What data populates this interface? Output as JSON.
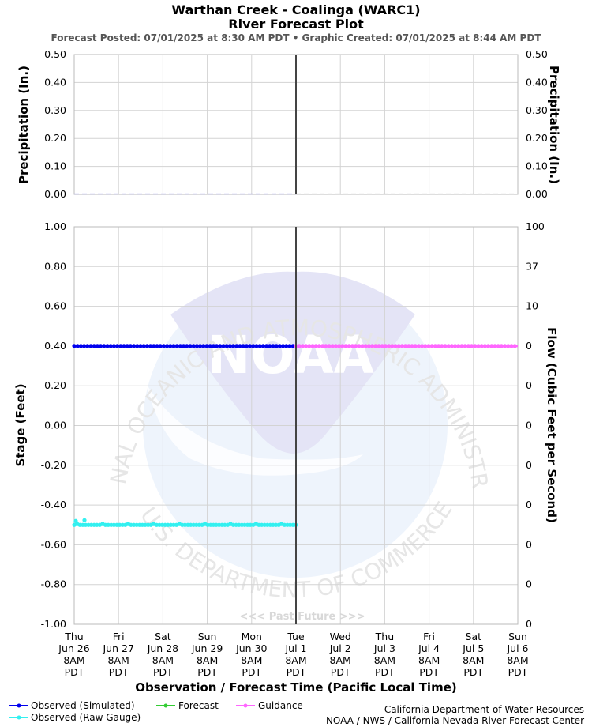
{
  "header": {
    "title": "Warthan Creek - Coalinga (WARC1)",
    "subtitle": "River Forecast Plot",
    "posted": "Forecast Posted: 07/01/2025 at 8:30 AM PDT  •  Graphic Created: 07/01/2025 at 8:44 AM PDT"
  },
  "chart_data": [
    {
      "type": "bar",
      "panel": "precipitation",
      "ylabel_left": "Precipitation (In.)",
      "ylabel_right": "Precipitation (In.)",
      "ylim": [
        0,
        0.5
      ],
      "yticks": [
        "0.00",
        "0.10",
        "0.20",
        "0.30",
        "0.40",
        "0.50"
      ],
      "observed_precip": {
        "x": [
          "Jun 26 8AM",
          "Jul 1 8AM"
        ],
        "values": [
          0,
          0
        ]
      },
      "forecast_precip": {
        "x": [
          "Jul 1 8AM",
          "Jul 6 8AM"
        ],
        "values": [
          0,
          0
        ]
      }
    },
    {
      "type": "line",
      "panel": "stage",
      "ylabel_left": "Stage (Feet)",
      "ylabel_right": "Flow (Cubic Feet per Second)",
      "ylim": [
        -1.0,
        1.0
      ],
      "yticks": [
        "1.00",
        "0.80",
        "0.60",
        "0.40",
        "0.20",
        "0.00",
        "-0.20",
        "-0.40",
        "-0.60",
        "-0.80",
        "-1.00"
      ],
      "flow_ticks": [
        "100",
        "37",
        "10",
        "0",
        "0",
        "0",
        "0",
        "0",
        "0",
        "0",
        "0"
      ],
      "xlabel": "Observation / Forecast Time (Pacific Local Time)",
      "x_ticks": [
        [
          "Thu",
          "Jun 26",
          "8AM",
          "PDT"
        ],
        [
          "Fri",
          "Jun 27",
          "8AM",
          "PDT"
        ],
        [
          "Sat",
          "Jun 28",
          "8AM",
          "PDT"
        ],
        [
          "Sun",
          "Jun 29",
          "8AM",
          "PDT"
        ],
        [
          "Mon",
          "Jun 30",
          "8AM",
          "PDT"
        ],
        [
          "Tue",
          "Jul 1",
          "8AM",
          "PDT"
        ],
        [
          "Wed",
          "Jul 2",
          "8AM",
          "PDT"
        ],
        [
          "Thu",
          "Jul 3",
          "8AM",
          "PDT"
        ],
        [
          "Fri",
          "Jul 4",
          "8AM",
          "PDT"
        ],
        [
          "Sat",
          "Jul 5",
          "8AM",
          "PDT"
        ],
        [
          "Sun",
          "Jul 6",
          "8AM",
          "PDT"
        ]
      ],
      "now_marker": "Jul 1 8AM",
      "past_future_label": "<<< Past   Future >>>",
      "series": [
        {
          "name": "Observed (Simulated)",
          "color": "#0000ee",
          "x_range": [
            "Jun 26 8AM",
            "Jul 1 8AM"
          ],
          "value": 0.4
        },
        {
          "name": "Observed (Raw Gauge)",
          "color": "#33f0f0",
          "x_range": [
            "Jun 26 8AM",
            "Jul 1 8AM"
          ],
          "value": -0.5
        },
        {
          "name": "Forecast",
          "color": "#33cc33",
          "x_range": [],
          "value": null
        },
        {
          "name": "Guidance",
          "color": "#ff66ff",
          "x_range": [
            "Jul 1 8AM",
            "Jul 6 8AM"
          ],
          "value": 0.4
        }
      ]
    }
  ],
  "watermark": {
    "logo_text": "NOAA",
    "ring_top": "NATIONAL OCEANIC AND ATMOSPHERIC ADMINISTRATION",
    "ring_bottom": "U.S. DEPARTMENT OF COMMERCE"
  },
  "credits": {
    "line1": "California Department of Water Resources",
    "line2": "NOAA / NWS / California Nevada River Forecast Center"
  },
  "colors": {
    "observed_simulated": "#0000ee",
    "observed_raw": "#33f0f0",
    "forecast": "#33cc33",
    "guidance": "#ff66ff",
    "now_line": "#444444"
  }
}
